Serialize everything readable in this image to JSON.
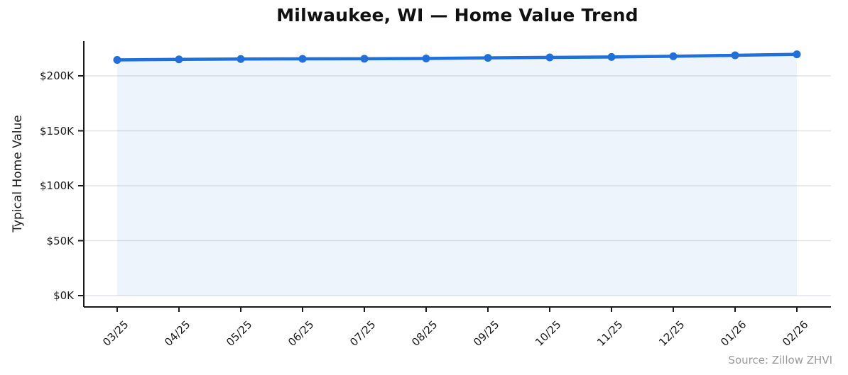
{
  "chart_data": {
    "type": "line",
    "title": "Milwaukee, WI — Home Value Trend",
    "xlabel": "",
    "ylabel": "Typical Home Value",
    "categories": [
      "03/25",
      "04/25",
      "05/25",
      "06/25",
      "07/25",
      "08/25",
      "09/25",
      "10/25",
      "11/25",
      "12/25",
      "01/26",
      "02/26"
    ],
    "series": [
      {
        "name": "Typical Home Value",
        "values": [
          214500,
          215000,
          215300,
          215500,
          215600,
          215800,
          216400,
          216800,
          217200,
          217800,
          218700,
          219600
        ]
      }
    ],
    "ylim": [
      0,
      231000
    ],
    "ytick_values": [
      0,
      50000,
      100000,
      150000,
      200000
    ],
    "ytick_labels": [
      "$0K",
      "$50K",
      "$100K",
      "$150K",
      "$200K"
    ],
    "grid": "horizontal",
    "legend_position": "none",
    "marker": "circle",
    "area_fill": true,
    "source_note": "Source: Zillow ZHVI",
    "colors": {
      "line": "#1f6fdd",
      "marker": "#1f6fdd",
      "area_fill": "rgba(31,111,221,0.08)",
      "grid": "#e3e3e8",
      "axis": "#1a1a1a",
      "tick_label": "#1a1a1a",
      "title": "#111111",
      "source": "#999999",
      "background": "#ffffff"
    }
  }
}
